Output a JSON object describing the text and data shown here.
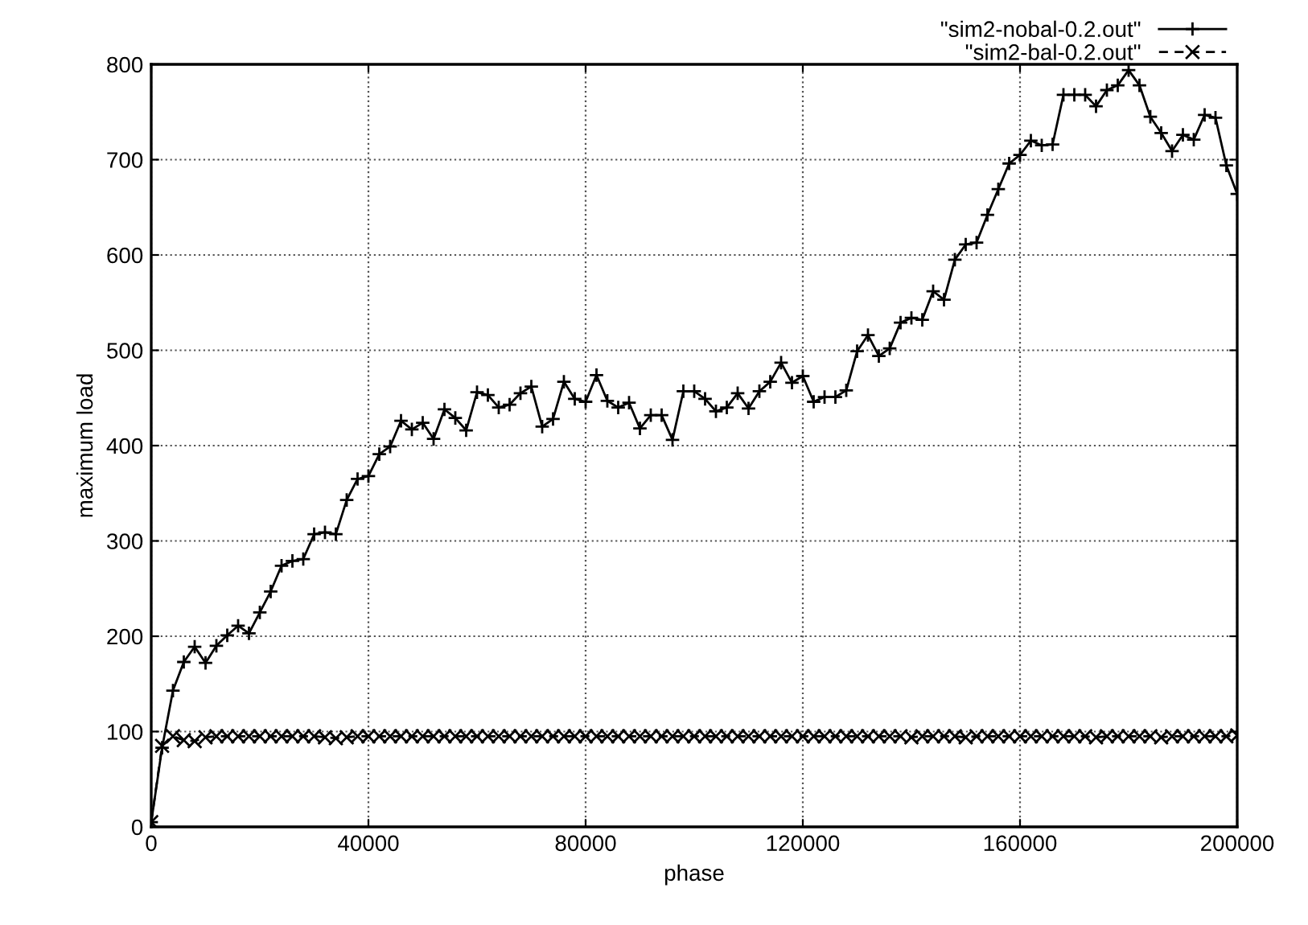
{
  "chart_data": {
    "type": "line",
    "xlabel": "phase",
    "ylabel": "maximum load",
    "x": [
      0,
      2000,
      4000,
      6000,
      8000,
      10000,
      12000,
      14000,
      16000,
      18000,
      20000,
      22000,
      24000,
      26000,
      28000,
      30000,
      32000,
      34000,
      36000,
      38000,
      40000,
      42000,
      44000,
      46000,
      48000,
      50000,
      52000,
      54000,
      56000,
      58000,
      60000,
      62000,
      64000,
      66000,
      68000,
      70000,
      72000,
      74000,
      76000,
      78000,
      80000,
      82000,
      84000,
      86000,
      88000,
      90000,
      92000,
      94000,
      96000,
      98000,
      100000,
      102000,
      104000,
      106000,
      108000,
      110000,
      112000,
      114000,
      116000,
      118000,
      120000,
      122000,
      124000,
      126000,
      128000,
      130000,
      132000,
      134000,
      136000,
      138000,
      140000,
      142000,
      144000,
      146000,
      148000,
      150000,
      152000,
      154000,
      156000,
      158000,
      160000,
      162000,
      164000,
      166000,
      168000,
      170000,
      172000,
      174000,
      176000,
      178000,
      180000,
      182000,
      184000,
      186000,
      188000,
      190000,
      192000,
      194000,
      196000,
      198000,
      200000
    ],
    "series": [
      {
        "name": "\"sim2-nobal-0.2.out\"",
        "color": "#000000",
        "marker": "cross",
        "line_style": "solid",
        "values": [
          5,
          83,
          143,
          173,
          189,
          172,
          190,
          201,
          211,
          203,
          225,
          247,
          274,
          279,
          281,
          307,
          309,
          307,
          343,
          365,
          368,
          391,
          399,
          426,
          417,
          424,
          407,
          438,
          429,
          416,
          456,
          453,
          440,
          443,
          455,
          462,
          420,
          428,
          467,
          449,
          446,
          474,
          447,
          440,
          445,
          418,
          432,
          432,
          406,
          457,
          457,
          449,
          436,
          440,
          455,
          439,
          457,
          467,
          487,
          466,
          473,
          446,
          451,
          451,
          458,
          499,
          516,
          494,
          502,
          529,
          534,
          532,
          562,
          553,
          595,
          611,
          613,
          642,
          669,
          696,
          705,
          720,
          715,
          716,
          768,
          768,
          768,
          756,
          773,
          778,
          794,
          778,
          745,
          728,
          709,
          726,
          721,
          747,
          744,
          694,
          664
        ]
      },
      {
        "name": "\"sim2-bal-0.2.out\"",
        "color": "#000000",
        "marker": "x",
        "line_style": "dashed",
        "values": [
          5,
          85,
          95,
          91,
          90,
          94,
          95,
          95,
          95,
          95,
          95,
          95,
          95,
          95,
          95,
          95,
          94,
          93,
          94,
          95,
          95,
          95,
          95,
          95,
          95,
          95,
          95,
          95,
          95,
          95,
          95,
          95,
          95,
          95,
          95,
          95,
          95,
          95,
          95,
          95,
          95,
          95,
          95,
          95,
          95,
          95,
          95,
          95,
          95,
          95,
          95,
          95,
          95,
          95,
          95,
          95,
          95,
          95,
          95,
          95,
          95,
          95,
          95,
          95,
          95,
          95,
          95,
          95,
          95,
          95,
          94,
          95,
          95,
          95,
          95,
          94,
          95,
          95,
          95,
          95,
          95,
          95,
          95,
          95,
          95,
          95,
          95,
          94,
          95,
          95,
          95,
          95,
          95,
          94,
          95,
          95,
          95,
          95,
          95,
          95,
          96
        ]
      }
    ],
    "xlim": [
      0,
      200000
    ],
    "ylim": [
      0,
      800
    ],
    "xticks": [
      0,
      40000,
      80000,
      120000,
      160000,
      200000
    ],
    "yticks": [
      0,
      100,
      200,
      300,
      400,
      500,
      600,
      700,
      800
    ],
    "grid": true,
    "legend": "top right"
  }
}
